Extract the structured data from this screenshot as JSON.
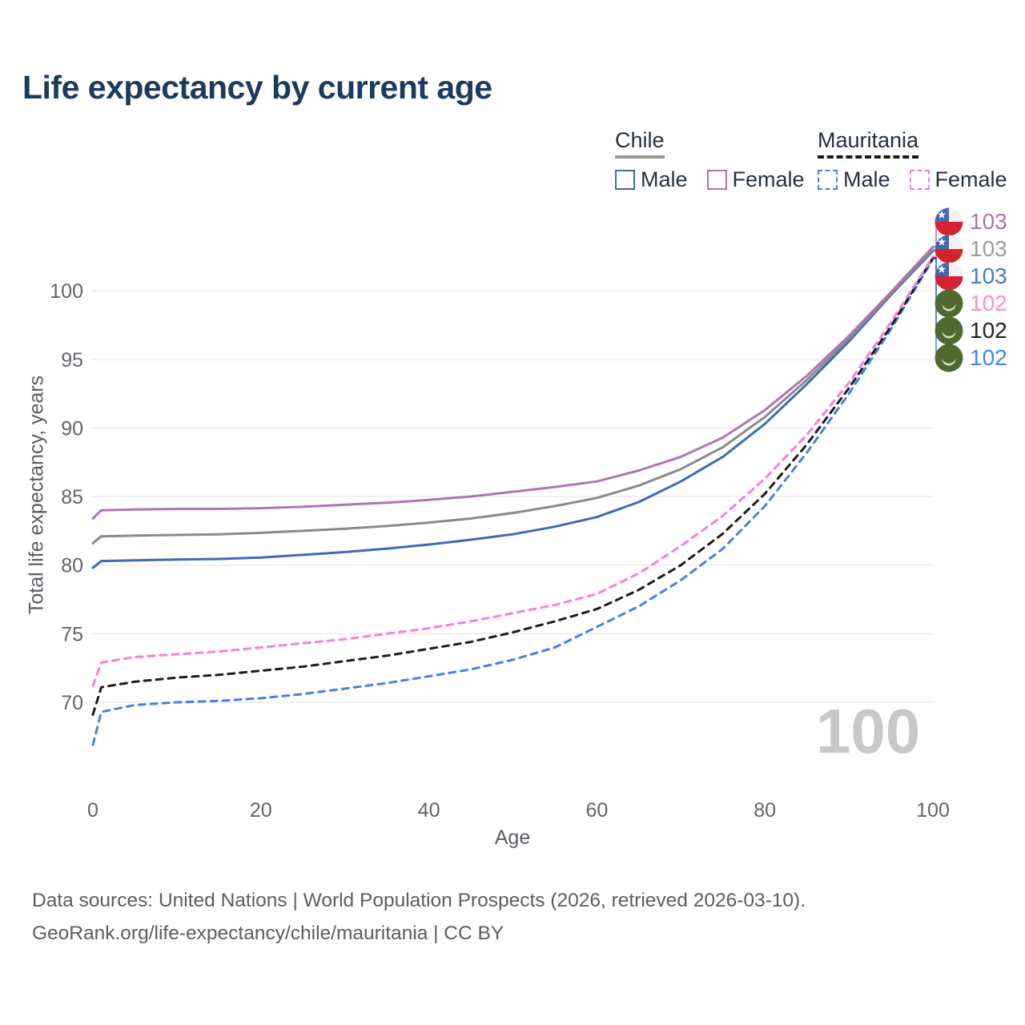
{
  "title": "Life expectancy by current age",
  "colors": {
    "title": "#1c3a5e",
    "axis": "#5a5c62",
    "tick_text": "#63646b",
    "grid": "#ebebf2",
    "watermark": "#c8c8ca",
    "footer": "#5b5d60"
  },
  "legend": {
    "groups": [
      {
        "label": "Chile",
        "line_style": "solid",
        "underline_color": "#9a9a9a",
        "items": [
          {
            "label": "Male",
            "color": "#3d6cb4",
            "style": "solid"
          },
          {
            "label": "Female",
            "color": "#b273b0",
            "style": "solid"
          }
        ]
      },
      {
        "label": "Mauritania",
        "line_style": "dashed",
        "underline_color": "#1a1a1a",
        "items": [
          {
            "label": "Male",
            "color": "#4580ec",
            "style": "dashed"
          },
          {
            "label": "Female",
            "color": "#f97edb",
            "style": "dashed"
          }
        ]
      }
    ]
  },
  "chart_data": {
    "type": "line",
    "title": "Life expectancy by current age",
    "xlabel": "Age",
    "ylabel": "Total life expectancy, years",
    "x_ticks": [
      0,
      20,
      40,
      60,
      80,
      100
    ],
    "y_ticks": [
      70,
      75,
      80,
      85,
      90,
      95,
      100
    ],
    "xlim": [
      0,
      100
    ],
    "ylim": [
      66,
      104
    ],
    "grid": "horizontal",
    "legend_position": "top-right",
    "ages": [
      0,
      1,
      5,
      10,
      15,
      20,
      25,
      30,
      35,
      40,
      45,
      50,
      55,
      60,
      65,
      70,
      75,
      80,
      85,
      90,
      95,
      100
    ],
    "series": [
      {
        "name": "Chile Male",
        "country": "Chile",
        "sex": "Male",
        "color": "#3d6cb4",
        "dash": "solid",
        "values": [
          79.8,
          80.3,
          80.35,
          80.4,
          80.45,
          80.55,
          80.75,
          80.95,
          81.2,
          81.5,
          81.85,
          82.25,
          82.8,
          83.5,
          84.6,
          86.1,
          87.9,
          90.3,
          93.2,
          96.3,
          99.7,
          102.9
        ]
      },
      {
        "name": "Chile Total",
        "country": "Chile",
        "sex": "Both",
        "color": "#8a8a8a",
        "dash": "solid",
        "values": [
          81.6,
          82.1,
          82.15,
          82.2,
          82.25,
          82.35,
          82.5,
          82.65,
          82.85,
          83.1,
          83.4,
          83.8,
          84.3,
          84.9,
          85.8,
          87.0,
          88.6,
          90.8,
          93.5,
          96.5,
          99.8,
          103.0
        ]
      },
      {
        "name": "Chile Female",
        "country": "Chile",
        "sex": "Female",
        "color": "#b273b0",
        "dash": "solid",
        "values": [
          83.4,
          84.0,
          84.05,
          84.1,
          84.1,
          84.15,
          84.25,
          84.4,
          84.55,
          84.75,
          85.0,
          85.35,
          85.7,
          86.1,
          86.9,
          87.9,
          89.3,
          91.3,
          93.8,
          96.7,
          99.9,
          103.2
        ]
      },
      {
        "name": "Mauritania Male",
        "country": "Mauritania",
        "sex": "Male",
        "color": "#4580ec",
        "dash": "dashed",
        "values": [
          66.9,
          69.3,
          69.8,
          70.0,
          70.1,
          70.3,
          70.6,
          71.0,
          71.4,
          71.9,
          72.4,
          73.1,
          74.0,
          75.5,
          77.0,
          78.9,
          81.2,
          84.3,
          88.2,
          92.5,
          97.2,
          102.3
        ]
      },
      {
        "name": "Mauritania Total",
        "country": "Mauritania",
        "sex": "Both",
        "color": "#1c1c1c",
        "dash": "dashed",
        "values": [
          69.1,
          71.1,
          71.5,
          71.8,
          72.0,
          72.3,
          72.6,
          73.0,
          73.4,
          73.9,
          74.4,
          75.1,
          75.9,
          76.8,
          78.2,
          80.0,
          82.3,
          85.2,
          88.8,
          92.9,
          97.4,
          102.4
        ]
      },
      {
        "name": "Mauritania Female",
        "country": "Mauritania",
        "sex": "Female",
        "color": "#f97edb",
        "dash": "dashed",
        "values": [
          71.2,
          72.9,
          73.3,
          73.5,
          73.7,
          74.0,
          74.3,
          74.6,
          75.0,
          75.4,
          75.9,
          76.5,
          77.1,
          77.9,
          79.4,
          81.4,
          83.6,
          86.3,
          89.5,
          93.3,
          97.7,
          102.5
        ]
      }
    ],
    "end_labels": [
      {
        "value": "103",
        "color": "#ae74ae",
        "icon": "chile-flag-icon",
        "series": "Chile Female"
      },
      {
        "value": "103",
        "color": "#9d9da1",
        "icon": "chile-flag-icon",
        "series": "Chile Total"
      },
      {
        "value": "103",
        "color": "#4a78cc",
        "icon": "chile-flag-icon",
        "series": "Chile Male"
      },
      {
        "value": "102",
        "color": "#fb8ae0",
        "icon": "mauritania-flag-icon",
        "series": "Mauritania Female"
      },
      {
        "value": "102",
        "color": "#222222",
        "icon": "mauritania-flag-icon",
        "series": "Mauritania Total"
      },
      {
        "value": "102",
        "color": "#4583ee",
        "icon": "mauritania-flag-icon",
        "series": "Mauritania Male"
      }
    ],
    "watermark": "100"
  },
  "footer": {
    "line1": "Data sources: United Nations | World Population Prospects (2026, retrieved 2026-03-10).",
    "line2": "GeoRank.org/life-expectancy/chile/mauritania | CC BY"
  }
}
